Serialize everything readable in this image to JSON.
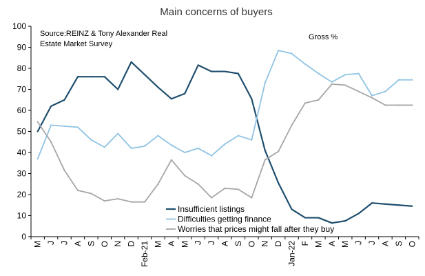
{
  "chart_data": {
    "type": "line",
    "title": "Main concerns of buyers",
    "source_lines": [
      "Source:REINZ & Tony Alexander Real",
      "Estate Market Survey"
    ],
    "annotation": "Gross %",
    "xlabel": "",
    "ylabel": "",
    "ylim": [
      0,
      100
    ],
    "yticks": [
      0,
      10,
      20,
      30,
      40,
      50,
      60,
      70,
      80,
      90,
      100
    ],
    "grid": false,
    "legend_position": "bottom-center",
    "categories": [
      "M",
      "J",
      "J",
      "A",
      "S",
      "O",
      "N",
      "D",
      "Feb-21",
      "M",
      "A",
      "M",
      "J",
      "J",
      "A",
      "S",
      "O",
      "N",
      "D",
      "Jan-22",
      "F",
      "M",
      "A",
      "M",
      "J",
      "J",
      "A",
      "S",
      "O"
    ],
    "series": [
      {
        "name": "Insufficient listings",
        "color": "#1f4e6e",
        "values": [
          50,
          62,
          65,
          76,
          76,
          76,
          70,
          83,
          77,
          71,
          65.5,
          68,
          81.5,
          78.5,
          78.5,
          77.5,
          65.5,
          41,
          25.5,
          13,
          9,
          9,
          6.5,
          7.5,
          11,
          16,
          15.5,
          15,
          14.5
        ]
      },
      {
        "name": "Difficulties getting finance",
        "color": "#8fc3e4",
        "values": [
          37,
          53,
          52.5,
          52,
          46,
          42.5,
          49,
          42,
          43,
          48,
          43.5,
          40,
          42,
          38.5,
          44,
          48,
          46,
          73,
          88.5,
          87,
          82,
          77.5,
          73.5,
          77,
          77.5,
          67,
          69,
          74.5,
          74.5
        ]
      },
      {
        "name": "Worries that prices might fall after they buy",
        "color": "#a6a6a6",
        "values": [
          54.5,
          45,
          31.5,
          22,
          20.5,
          17,
          18,
          16.5,
          16.5,
          25,
          36.5,
          29,
          25,
          18.5,
          23,
          22.5,
          18.5,
          36.5,
          40.5,
          53,
          63.5,
          65,
          72.5,
          72,
          69,
          66,
          62.5,
          62.5,
          62.5
        ]
      }
    ]
  }
}
